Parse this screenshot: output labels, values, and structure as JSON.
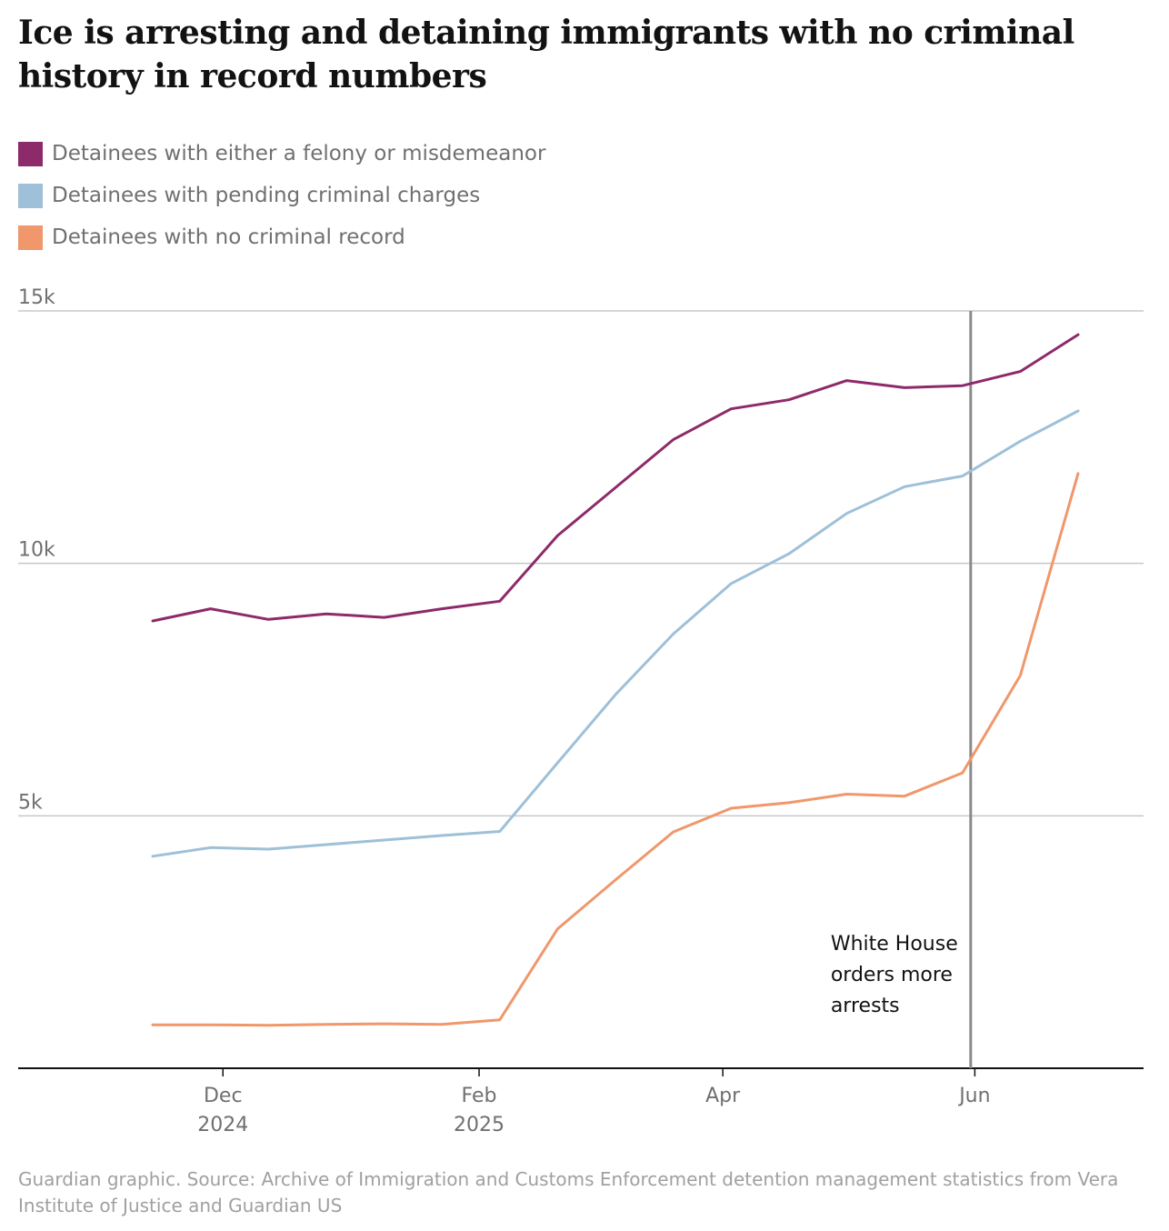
{
  "title": "Ice is arresting and detaining immigrants with no criminal history in record numbers",
  "footer": "Guardian graphic. Source: Archive of Immigration and Customs Enforcement detention management statistics from Vera Institute of Justice and Guardian US",
  "chart_data": {
    "type": "line",
    "ylim": [
      0,
      15000
    ],
    "y_ticks": [
      {
        "value": 5000,
        "label": "5k"
      },
      {
        "value": 10000,
        "label": "10k"
      },
      {
        "value": 15000,
        "label": "15k"
      }
    ],
    "x_range": [
      "2024-10-31",
      "2025-06-30"
    ],
    "x_ticks": [
      {
        "date": "2024-12-01",
        "label": "Dec",
        "sublabel": "2024"
      },
      {
        "date": "2025-02-01",
        "label": "Feb",
        "sublabel": "2025"
      },
      {
        "date": "2025-04-01",
        "label": "Apr",
        "sublabel": ""
      },
      {
        "date": "2025-06-01",
        "label": "Jun",
        "sublabel": ""
      }
    ],
    "x": [
      "2024-11-17",
      "2024-12-01",
      "2024-12-15",
      "2024-12-29",
      "2025-01-12",
      "2025-01-26",
      "2025-02-09",
      "2025-02-23",
      "2025-03-09",
      "2025-03-23",
      "2025-04-06",
      "2025-04-20",
      "2025-05-04",
      "2025-05-18",
      "2025-06-01",
      "2025-06-15",
      "2025-06-29"
    ],
    "series": [
      {
        "name": "Detainees with either a felony or misdemeanor",
        "color": "#8d2a6a",
        "points": [
          {
            "date": "2024-11-14",
            "value": 8860
          },
          {
            "date": "2024-11-28",
            "value": 9100
          },
          {
            "date": "2024-12-12",
            "value": 8890
          },
          {
            "date": "2024-12-26",
            "value": 9000
          },
          {
            "date": "2025-01-09",
            "value": 8930
          },
          {
            "date": "2025-01-23",
            "value": 9100
          },
          {
            "date": "2025-02-06",
            "value": 9250
          },
          {
            "date": "2025-02-20",
            "value": 10550
          },
          {
            "date": "2025-03-06",
            "value": 11500
          },
          {
            "date": "2025-03-20",
            "value": 12450
          },
          {
            "date": "2025-04-03",
            "value": 13060
          },
          {
            "date": "2025-04-17",
            "value": 13240
          },
          {
            "date": "2025-05-01",
            "value": 13620
          },
          {
            "date": "2025-05-15",
            "value": 13480
          },
          {
            "date": "2025-05-29",
            "value": 13520
          },
          {
            "date": "2025-06-12",
            "value": 13800
          },
          {
            "date": "2025-06-26",
            "value": 14530
          }
        ]
      },
      {
        "name": "Detainees with pending criminal charges",
        "color": "#9ec0d8",
        "points": [
          {
            "date": "2024-11-14",
            "value": 4200
          },
          {
            "date": "2024-11-28",
            "value": 4370
          },
          {
            "date": "2024-12-12",
            "value": 4340
          },
          {
            "date": "2024-12-26",
            "value": 4430
          },
          {
            "date": "2025-01-09",
            "value": 4520
          },
          {
            "date": "2025-01-23",
            "value": 4610
          },
          {
            "date": "2025-02-06",
            "value": 4690
          },
          {
            "date": "2025-02-20",
            "value": 6050
          },
          {
            "date": "2025-03-06",
            "value": 7400
          },
          {
            "date": "2025-03-20",
            "value": 8600
          },
          {
            "date": "2025-04-03",
            "value": 9600
          },
          {
            "date": "2025-04-17",
            "value": 10190
          },
          {
            "date": "2025-05-01",
            "value": 10990
          },
          {
            "date": "2025-05-15",
            "value": 11520
          },
          {
            "date": "2025-05-29",
            "value": 11730
          },
          {
            "date": "2025-06-12",
            "value": 12420
          },
          {
            "date": "2025-06-26",
            "value": 13020
          }
        ]
      },
      {
        "name": "Detainees with no criminal record",
        "color": "#f0976b",
        "points": [
          {
            "date": "2024-11-14",
            "value": 860
          },
          {
            "date": "2024-11-28",
            "value": 860
          },
          {
            "date": "2024-12-12",
            "value": 850
          },
          {
            "date": "2024-12-26",
            "value": 870
          },
          {
            "date": "2025-01-09",
            "value": 880
          },
          {
            "date": "2025-01-23",
            "value": 870
          },
          {
            "date": "2025-02-06",
            "value": 960
          },
          {
            "date": "2025-02-20",
            "value": 2760
          },
          {
            "date": "2025-03-06",
            "value": 3730
          },
          {
            "date": "2025-03-20",
            "value": 4680
          },
          {
            "date": "2025-04-03",
            "value": 5150
          },
          {
            "date": "2025-04-17",
            "value": 5260
          },
          {
            "date": "2025-05-01",
            "value": 5430
          },
          {
            "date": "2025-05-15",
            "value": 5390
          },
          {
            "date": "2025-05-29",
            "value": 5850
          },
          {
            "date": "2025-06-12",
            "value": 7780
          },
          {
            "date": "2025-06-26",
            "value": 11780
          }
        ]
      }
    ],
    "annotation": {
      "date": "2025-05-31",
      "lines": [
        "White House",
        "orders more",
        "arrests"
      ]
    }
  }
}
